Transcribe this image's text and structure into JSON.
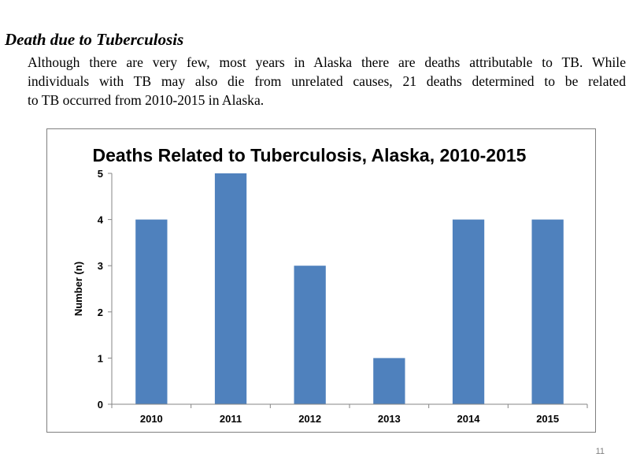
{
  "document": {
    "heading": "Death due to Tuberculosis",
    "paragraph_lines": [
      "Although there are very few, most years in Alaska there are deaths attributable to TB.  While",
      "individuals with TB may also die from unrelated causes, 21 deaths determined to be related",
      "to TB occurred from 2010-2015 in Alaska."
    ],
    "page_number": "11"
  },
  "chart_data": {
    "type": "bar",
    "title": "Deaths Related to Tuberculosis, Alaska, 2010-2015",
    "xlabel": "",
    "ylabel": "Number (n)",
    "categories": [
      "2010",
      "2011",
      "2012",
      "2013",
      "2014",
      "2015"
    ],
    "values": [
      4,
      5,
      3,
      1,
      4,
      4
    ],
    "ylim": [
      0,
      5
    ],
    "yticks": [
      "0",
      "1",
      "2",
      "3",
      "4",
      "5"
    ],
    "grid": false,
    "legend": "none",
    "bar_color": "#4f81bd",
    "axis_color": "#868686"
  }
}
